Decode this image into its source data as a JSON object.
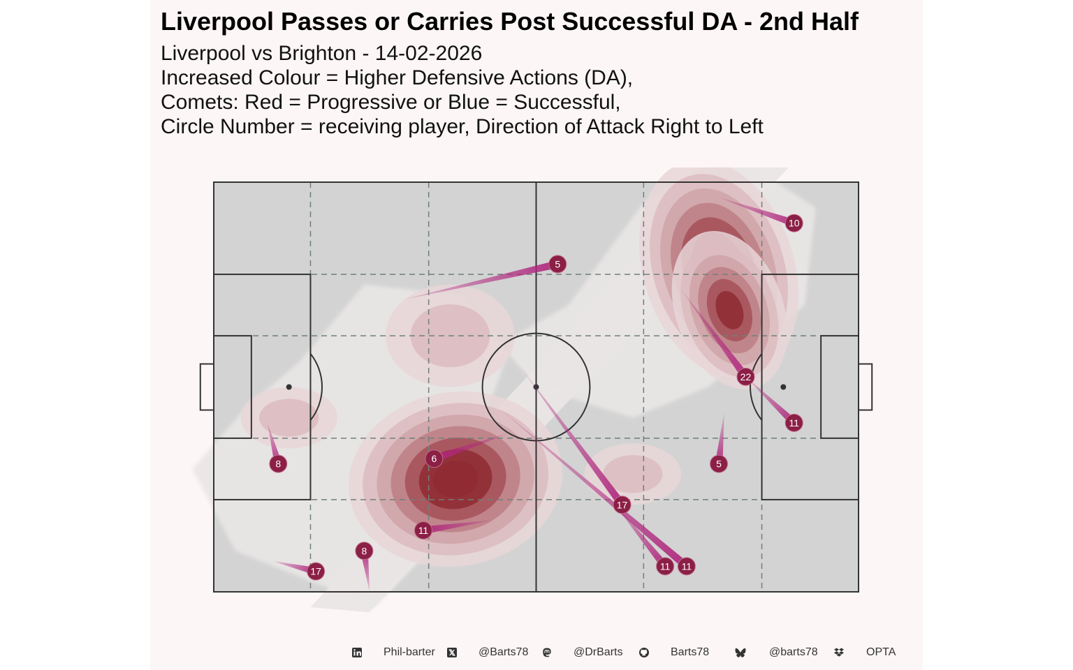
{
  "chart_data": {
    "type": "scatter",
    "title": "Liverpool Passes or Carries Post Successful DA - 2nd Half",
    "subtitle_lines": [
      "Liverpool vs Brighton - 14-02-2026",
      "Increased Colour = Higher Defensive Actions (DA),",
      "Comets: Red = Progressive or Blue = Successful,",
      "Circle Number = receiving player, Direction of Attack Right to Left"
    ],
    "xlim": [
      0,
      120
    ],
    "ylim": [
      0,
      80
    ],
    "grid": false,
    "legend": "none",
    "colors": {
      "pitch": "#d3d3d3",
      "pitch_lines": "#333333",
      "zone_lines": "#6f7f7a",
      "density_levels": [
        "#eae6e6",
        "#e7d6d8",
        "#dcbcc0",
        "#cfa3a8",
        "#bd7f85",
        "#a65058",
        "#8f2a33"
      ],
      "comet": "#b0287e",
      "marker": "#8b1f45",
      "marker_text": "#ffffff",
      "background": "#fdf6f6"
    },
    "density_hotspots": [
      {
        "x": 94,
        "y": 63,
        "level": 7
      },
      {
        "x": 96,
        "y": 55,
        "level": 6
      },
      {
        "x": 45,
        "y": 22,
        "level": 7
      },
      {
        "x": 14,
        "y": 34,
        "level": 2
      },
      {
        "x": 78,
        "y": 23,
        "level": 2
      },
      {
        "x": 44,
        "y": 50,
        "level": 2
      }
    ],
    "actions": [
      {
        "player": "10",
        "start_x": 94,
        "start_y": 77,
        "end_x": 108,
        "end_y": 72
      },
      {
        "player": "5",
        "start_x": 35,
        "start_y": 57,
        "end_x": 64,
        "end_y": 64
      },
      {
        "player": "22",
        "start_x": 87,
        "start_y": 59,
        "end_x": 99,
        "end_y": 42
      },
      {
        "player": "11",
        "start_x": 99,
        "start_y": 42,
        "end_x": 108,
        "end_y": 33
      },
      {
        "player": "5",
        "start_x": 95,
        "start_y": 35,
        "end_x": 94,
        "end_y": 25
      },
      {
        "player": "6",
        "start_x": 55,
        "start_y": 31,
        "end_x": 41,
        "end_y": 26
      },
      {
        "player": "8",
        "start_x": 10,
        "start_y": 33,
        "end_x": 12,
        "end_y": 25
      },
      {
        "player": "17",
        "start_x": 57,
        "start_y": 44,
        "end_x": 76,
        "end_y": 17
      },
      {
        "player": "11",
        "start_x": 53,
        "start_y": 36,
        "end_x": 88,
        "end_y": 5
      },
      {
        "player": "11",
        "start_x": 74,
        "start_y": 18,
        "end_x": 84,
        "end_y": 5
      },
      {
        "player": "11",
        "start_x": 52,
        "start_y": 14,
        "end_x": 39,
        "end_y": 12
      },
      {
        "player": "8",
        "start_x": 29,
        "start_y": 0,
        "end_x": 28,
        "end_y": 8
      },
      {
        "player": "17",
        "start_x": 11,
        "start_y": 6,
        "end_x": 19,
        "end_y": 4
      }
    ]
  },
  "footer": {
    "items": [
      {
        "icon": "linkedin-icon",
        "text": "Phil-barter"
      },
      {
        "icon": "x-twitter-icon",
        "text": "@Barts78"
      },
      {
        "icon": "mastodon-icon",
        "text": "@DrBarts"
      },
      {
        "icon": "github-icon",
        "text": "Barts78"
      },
      {
        "icon": "bluesky-icon",
        "text": "@barts78"
      },
      {
        "icon": "dropbox-icon",
        "text": "OPTA"
      }
    ]
  }
}
